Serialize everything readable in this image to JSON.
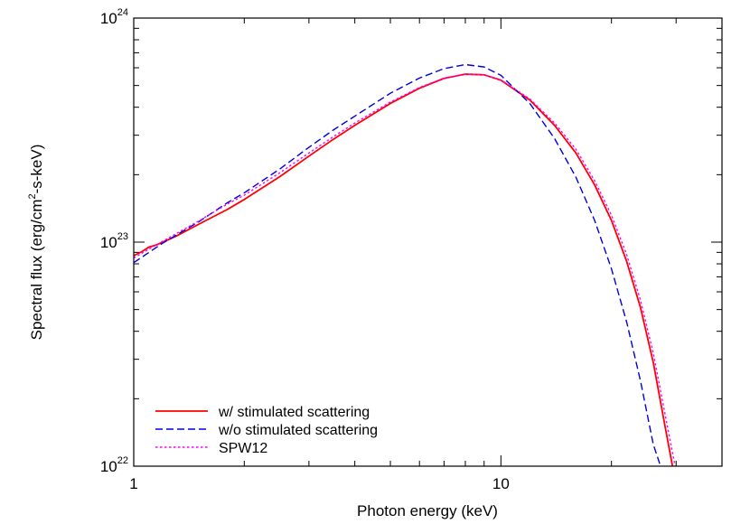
{
  "chart_data": {
    "type": "line",
    "title": "",
    "xlabel": "Photon energy (keV)",
    "ylabel": {
      "prefix": "Spectral flux (erg/cm",
      "exponent": "2",
      "suffix": "-s-keV)"
    },
    "xscale": "log",
    "yscale": "log",
    "xlim": [
      1,
      40
    ],
    "ylim": [
      1e+22,
      1e+24
    ],
    "grid": false,
    "legend_position": "bottom-left",
    "x_ticks": [
      {
        "value": 1,
        "label": "1"
      },
      {
        "value": 10,
        "label": "10"
      }
    ],
    "y_ticks": [
      {
        "value": 1e+22,
        "base": "10",
        "exponent": "22"
      },
      {
        "value": 1e+23,
        "base": "10",
        "exponent": "23"
      },
      {
        "value": 1e+24,
        "base": "10",
        "exponent": "24"
      }
    ],
    "series": [
      {
        "name": "w/ stimulated scattering",
        "color": "#ff0000",
        "dash": "solid",
        "x": [
          1.0,
          1.05,
          1.1,
          1.15,
          1.2,
          1.3,
          1.5,
          1.8,
          2.0,
          2.5,
          3.0,
          3.5,
          4.0,
          5.0,
          6.0,
          7.0,
          8.0,
          9.0,
          10.0,
          12.0,
          14.0,
          16.0,
          18.0,
          20.0,
          22.0,
          24.0,
          26.0,
          28.0,
          29.5
        ],
        "y": [
          8.7e+22,
          9.05e+22,
          9.5e+22,
          9.7e+22,
          1e+23,
          1.06e+23,
          1.2e+23,
          1.4e+23,
          1.55e+23,
          1.96e+23,
          2.42e+23,
          2.88e+23,
          3.32e+23,
          4.16e+23,
          4.86e+23,
          5.38e+23,
          5.62e+23,
          5.58e+23,
          5.28e+23,
          4.3e+23,
          3.32e+23,
          2.5e+23,
          1.8e+23,
          1.25e+23,
          8.2e+22,
          5.1e+22,
          2.9e+22,
          1.5e+22,
          9.5e+21
        ]
      },
      {
        "name": "w/o stimulated scattering",
        "color": "#0000dd",
        "dash": "dashed",
        "x": [
          1.0,
          1.2,
          1.5,
          1.8,
          2.0,
          2.5,
          3.0,
          3.5,
          4.0,
          5.0,
          6.0,
          7.0,
          8.0,
          9.0,
          10.0,
          12.0,
          14.0,
          16.0,
          18.0,
          20.0,
          22.0,
          24.0,
          26.0,
          27.5
        ],
        "y": [
          8.1e+22,
          9.9e+22,
          1.23e+23,
          1.5e+23,
          1.66e+23,
          2.12e+23,
          2.65e+23,
          3.17e+23,
          3.65e+23,
          4.62e+23,
          5.4e+23,
          5.95e+23,
          6.2e+23,
          6.05e+23,
          5.55e+23,
          4.15e+23,
          2.9e+23,
          1.95e+23,
          1.25e+23,
          7.6e+22,
          4.4e+22,
          2.4e+22,
          1.25e+22,
          9.5e+21
        ]
      },
      {
        "name": "SPW12",
        "color": "#ff00ff",
        "dash": "dotted",
        "x": [
          1.0,
          1.2,
          1.5,
          1.8,
          2.0,
          2.5,
          3.0,
          3.5,
          4.0,
          5.0,
          6.0,
          7.0,
          8.0,
          9.0,
          10.0,
          12.0,
          14.0,
          16.0,
          18.0,
          20.0,
          22.0,
          24.0,
          26.0,
          28.0,
          30.0
        ],
        "y": [
          8.5e+22,
          1.01e+23,
          1.24e+23,
          1.48e+23,
          1.62e+23,
          2.04e+23,
          2.5e+23,
          2.96e+23,
          3.4e+23,
          4.22e+23,
          4.9e+23,
          5.4e+23,
          5.62e+23,
          5.58e+23,
          5.3e+23,
          4.35e+23,
          3.4e+23,
          2.6e+23,
          1.88e+23,
          1.32e+23,
          8.8e+22,
          5.5e+22,
          3.2e+22,
          1.7e+22,
          9.5e+21
        ]
      }
    ]
  }
}
